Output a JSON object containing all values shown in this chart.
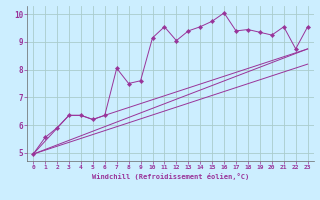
{
  "background_color": "#cceeff",
  "grid_color": "#aacccc",
  "line_color": "#993399",
  "marker_color": "#993399",
  "xlabel": "Windchill (Refroidissement éolien,°C)",
  "xlabel_color": "#993399",
  "ylabel_color": "#993399",
  "tick_color": "#993399",
  "spine_color": "#666666",
  "xlim": [
    -0.5,
    23.5
  ],
  "ylim": [
    4.7,
    10.3
  ],
  "yticks": [
    5,
    6,
    7,
    8,
    9,
    10
  ],
  "xticks": [
    0,
    1,
    2,
    3,
    4,
    5,
    6,
    7,
    8,
    9,
    10,
    11,
    12,
    13,
    14,
    15,
    16,
    17,
    18,
    19,
    20,
    21,
    22,
    23
  ],
  "series1_x": [
    0,
    1,
    2,
    3,
    4,
    5,
    6,
    7,
    8,
    9,
    10,
    11,
    12,
    13,
    14,
    15,
    16,
    17,
    18,
    19,
    20,
    21,
    22,
    23
  ],
  "series1_y": [
    4.95,
    5.55,
    5.9,
    6.35,
    6.35,
    6.2,
    6.35,
    8.05,
    7.5,
    7.6,
    9.15,
    9.55,
    9.05,
    9.4,
    9.55,
    9.75,
    10.05,
    9.4,
    9.45,
    9.35,
    9.25,
    9.55,
    8.75,
    9.55
  ],
  "series2_x": [
    0,
    3,
    4,
    5,
    6,
    23
  ],
  "series2_y": [
    4.95,
    6.35,
    6.35,
    6.2,
    6.35,
    8.75
  ],
  "series3_x": [
    0,
    23
  ],
  "series3_y": [
    4.95,
    8.75
  ],
  "series4_x": [
    0,
    23
  ],
  "series4_y": [
    4.95,
    8.2
  ]
}
